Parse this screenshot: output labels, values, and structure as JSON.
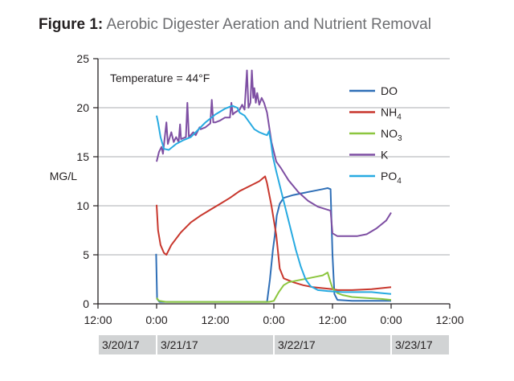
{
  "figure": {
    "label": "Figure 1:",
    "title": "Aerobic Digester Aeration and Nutrient Removal"
  },
  "chart_data": {
    "type": "line",
    "title": "Aerobic Digester Aeration and Nutrient Removal",
    "ylabel": "MG/L",
    "ylim": [
      0,
      25
    ],
    "yticks": [
      "0",
      "5",
      "10",
      "15",
      "20",
      "25"
    ],
    "x_unit": "hours from 3/20/17 12:00",
    "xlim": [
      0,
      72
    ],
    "xticks": [
      "12:00",
      "0:00",
      "12:00",
      "0:00",
      "12:00",
      "0:00",
      "12:00"
    ],
    "date_bands": [
      {
        "label": "3/20/17",
        "from": 0,
        "to": 12
      },
      {
        "label": "3/21/17",
        "from": 12,
        "to": 36
      },
      {
        "label": "3/22/17",
        "from": 36,
        "to": 60
      },
      {
        "label": "3/23/17",
        "from": 60,
        "to": 72
      }
    ],
    "annotation": "Temperature = 44°F",
    "grid": "horizontal",
    "legend_position": "right",
    "colors": {
      "DO": "#2f6fb7",
      "NH4": "#c8372d",
      "NO3": "#8cc63f",
      "K": "#7e4fa3",
      "PO4": "#27aae1"
    },
    "series": [
      {
        "name": "DO",
        "base": "DO",
        "sub": "",
        "points": [
          [
            11.9,
            5.1
          ],
          [
            12.1,
            0.5
          ],
          [
            12.6,
            0.2
          ],
          [
            20,
            0.2
          ],
          [
            28,
            0.2
          ],
          [
            34,
            0.2
          ],
          [
            34.6,
            0.2
          ],
          [
            35.2,
            2.5
          ],
          [
            35.8,
            5.5
          ],
          [
            36.2,
            7
          ],
          [
            36.6,
            9
          ],
          [
            37.2,
            10.2
          ],
          [
            38,
            10.8
          ],
          [
            40,
            11.1
          ],
          [
            42,
            11.3
          ],
          [
            44,
            11.5
          ],
          [
            46,
            11.7
          ],
          [
            47,
            11.8
          ],
          [
            47.6,
            11.7
          ],
          [
            48,
            5
          ],
          [
            48.4,
            1
          ],
          [
            49,
            0.4
          ],
          [
            52,
            0.3
          ],
          [
            56,
            0.3
          ],
          [
            60,
            0.3
          ]
        ]
      },
      {
        "name": "NH4",
        "base": "NH",
        "sub": "4",
        "points": [
          [
            12,
            10.1
          ],
          [
            12.3,
            7.5
          ],
          [
            12.8,
            6
          ],
          [
            13.5,
            5.2
          ],
          [
            14,
            5
          ],
          [
            15,
            6
          ],
          [
            17,
            7.3
          ],
          [
            19,
            8.3
          ],
          [
            21,
            9
          ],
          [
            23,
            9.6
          ],
          [
            25,
            10.2
          ],
          [
            27,
            10.8
          ],
          [
            29,
            11.5
          ],
          [
            31,
            12
          ],
          [
            33,
            12.5
          ],
          [
            34.2,
            13
          ],
          [
            34.6,
            12.3
          ],
          [
            35.5,
            10
          ],
          [
            36.5,
            7
          ],
          [
            37.2,
            3.6
          ],
          [
            38,
            2.6
          ],
          [
            40,
            2.2
          ],
          [
            42,
            1.9
          ],
          [
            44,
            1.7
          ],
          [
            46,
            1.6
          ],
          [
            48,
            1.5
          ],
          [
            49,
            1.4
          ],
          [
            52,
            1.4
          ],
          [
            56,
            1.5
          ],
          [
            60,
            1.7
          ]
        ]
      },
      {
        "name": "NO3",
        "base": "NO",
        "sub": "3",
        "points": [
          [
            12,
            0.6
          ],
          [
            12.5,
            0.3
          ],
          [
            14,
            0.2
          ],
          [
            20,
            0.2
          ],
          [
            28,
            0.2
          ],
          [
            35,
            0.2
          ],
          [
            36,
            0.3
          ],
          [
            37,
            1.2
          ],
          [
            38,
            1.9
          ],
          [
            39,
            2.2
          ],
          [
            41,
            2.4
          ],
          [
            43,
            2.6
          ],
          [
            45,
            2.8
          ],
          [
            46,
            2.9
          ],
          [
            47,
            3.2
          ],
          [
            47.6,
            2.2
          ],
          [
            48,
            1.6
          ],
          [
            49,
            1.1
          ],
          [
            50,
            0.9
          ],
          [
            52,
            0.7
          ],
          [
            55,
            0.6
          ],
          [
            58,
            0.5
          ],
          [
            60,
            0.4
          ]
        ]
      },
      {
        "name": "K",
        "base": "K",
        "sub": "",
        "points": [
          [
            12,
            14.5
          ],
          [
            12.5,
            15.5
          ],
          [
            13,
            16
          ],
          [
            13.3,
            15.3
          ],
          [
            14,
            18.5
          ],
          [
            14.3,
            16.3
          ],
          [
            15,
            17.5
          ],
          [
            15.5,
            16.5
          ],
          [
            16,
            17
          ],
          [
            16.5,
            16.5
          ],
          [
            16.8,
            18.3
          ],
          [
            17,
            16.8
          ],
          [
            18,
            17
          ],
          [
            18.3,
            20.5
          ],
          [
            18.6,
            17
          ],
          [
            19.5,
            17.5
          ],
          [
            20,
            17.2
          ],
          [
            20.8,
            18
          ],
          [
            21,
            17.8
          ],
          [
            22,
            18
          ],
          [
            23,
            18.4
          ],
          [
            23.3,
            20.8
          ],
          [
            23.6,
            18.5
          ],
          [
            24,
            18.5
          ],
          [
            25,
            18.7
          ],
          [
            26,
            19
          ],
          [
            27,
            19
          ],
          [
            27.3,
            20.5
          ],
          [
            27.6,
            19.3
          ],
          [
            28,
            19.5
          ],
          [
            29,
            19.8
          ],
          [
            29.5,
            20.3
          ],
          [
            30,
            19.8
          ],
          [
            30.5,
            23.8
          ],
          [
            30.8,
            20
          ],
          [
            31.2,
            20.5
          ],
          [
            31.5,
            23.8
          ],
          [
            31.8,
            21
          ],
          [
            32,
            22
          ],
          [
            32.3,
            20.5
          ],
          [
            32.6,
            21.5
          ],
          [
            33,
            20.3
          ],
          [
            33.5,
            21
          ],
          [
            34,
            20.5
          ],
          [
            34.6,
            19.5
          ],
          [
            35.5,
            16.5
          ],
          [
            36.5,
            14.5
          ],
          [
            37.5,
            13.8
          ],
          [
            39,
            12.6
          ],
          [
            41,
            11.4
          ],
          [
            43,
            10.5
          ],
          [
            45,
            9.9
          ],
          [
            47,
            9.6
          ],
          [
            47.6,
            9.5
          ],
          [
            48,
            7.2
          ],
          [
            49,
            6.9
          ],
          [
            51,
            6.9
          ],
          [
            53,
            6.9
          ],
          [
            55,
            7.1
          ],
          [
            57,
            7.7
          ],
          [
            59,
            8.5
          ],
          [
            60,
            9.3
          ]
        ]
      },
      {
        "name": "PO4",
        "base": "PO",
        "sub": "4",
        "points": [
          [
            12,
            19.2
          ],
          [
            12.3,
            18.5
          ],
          [
            12.8,
            17
          ],
          [
            13.5,
            15.8
          ],
          [
            14.5,
            15.7
          ],
          [
            16,
            16.3
          ],
          [
            17.5,
            16.7
          ],
          [
            19,
            17
          ],
          [
            20,
            17.5
          ],
          [
            22,
            18.5
          ],
          [
            24,
            19.3
          ],
          [
            25,
            19.6
          ],
          [
            26,
            19.9
          ],
          [
            27.5,
            20.2
          ],
          [
            28.5,
            20
          ],
          [
            29,
            19.5
          ],
          [
            30,
            19.2
          ],
          [
            31,
            18.5
          ],
          [
            32,
            17.8
          ],
          [
            33,
            17.5
          ],
          [
            34,
            17.3
          ],
          [
            34.6,
            17.2
          ],
          [
            35,
            17.6
          ],
          [
            35.4,
            16.5
          ],
          [
            35.8,
            15
          ],
          [
            36.5,
            13.5
          ],
          [
            37.5,
            11.5
          ],
          [
            38.5,
            9.5
          ],
          [
            39.5,
            7.5
          ],
          [
            40.5,
            5.5
          ],
          [
            41.5,
            3.8
          ],
          [
            42.5,
            2.5
          ],
          [
            43.5,
            1.8
          ],
          [
            45,
            1.4
          ],
          [
            47,
            1.3
          ],
          [
            50,
            1.2
          ],
          [
            53,
            1.2
          ],
          [
            56,
            1.2
          ],
          [
            58,
            1.1
          ],
          [
            60,
            1
          ]
        ]
      }
    ]
  }
}
